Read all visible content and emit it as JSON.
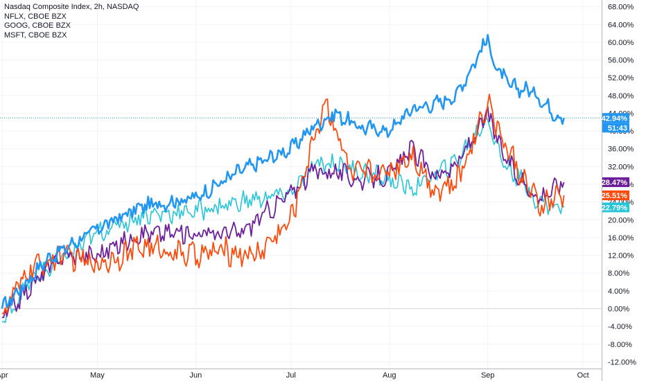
{
  "legend": {
    "main": "Nasdaq Composite Index, 2h, NASDAQ",
    "items": [
      "NFLX, CBOE BZX",
      "GOOG, CBOE BZX",
      "MSFT, CBOE BZX"
    ]
  },
  "chart_data": {
    "type": "line",
    "y_unit": "%",
    "ylim": [
      -12,
      68
    ],
    "y_ticks": [
      "68.00%",
      "64.00%",
      "60.00%",
      "56.00%",
      "52.00%",
      "48.00%",
      "44.00%",
      "40.00%",
      "36.00%",
      "32.00%",
      "28.00%",
      "24.00%",
      "20.00%",
      "16.00%",
      "12.00%",
      "8.00%",
      "4.00%",
      "0.00%",
      "-4.00%",
      "-8.00%",
      "-12.00%"
    ],
    "x_ticks": [
      "Apr",
      "May",
      "Jun",
      "Jul",
      "Aug",
      "Sep",
      "Oct"
    ],
    "grid": true,
    "legend_position": "top-left",
    "series": [
      {
        "name": "Nasdaq Composite Index",
        "color": "#2196f3",
        "x": [
          "Apr 1",
          "Apr 15",
          "May 1",
          "May 15",
          "Jun 1",
          "Jun 15",
          "Jul 1",
          "Jul 8",
          "Jul 15",
          "Jul 22",
          "Aug 1",
          "Aug 8",
          "Aug 15",
          "Aug 22",
          "Sep 1",
          "Sep 3",
          "Sep 8",
          "Sep 15",
          "Sep 22",
          "Sep 25"
        ],
        "values": [
          0,
          11,
          18,
          23,
          25,
          31,
          36,
          41,
          44,
          41,
          40,
          45,
          46,
          48,
          61,
          55,
          50,
          49,
          44,
          42.94
        ],
        "last_value_label": "42.94%",
        "countdown_label": "51:43"
      },
      {
        "name": "NFLX",
        "color": "#ff4a0b",
        "x": [
          "Apr 1",
          "Apr 10",
          "Apr 20",
          "May 1",
          "May 15",
          "Jun 1",
          "Jun 10",
          "Jun 20",
          "Jul 1",
          "Jul 8",
          "Jul 12",
          "Jul 20",
          "Aug 1",
          "Aug 8",
          "Aug 15",
          "Aug 22",
          "Sep 1",
          "Sep 5",
          "Sep 10",
          "Sep 17",
          "Sep 25"
        ],
        "values": [
          -1,
          9,
          12,
          10,
          14,
          12,
          13,
          12,
          20,
          38,
          47,
          30,
          31,
          35,
          27,
          28,
          47,
          39,
          32,
          23,
          25.51
        ],
        "last_value_label": "25.51%"
      },
      {
        "name": "GOOG",
        "color": "#6d1e9c",
        "x": [
          "Apr 1",
          "Apr 10",
          "Apr 20",
          "May 1",
          "May 15",
          "Jun 1",
          "Jun 15",
          "Jul 1",
          "Jul 8",
          "Jul 15",
          "Jul 22",
          "Aug 1",
          "Aug 8",
          "Aug 15",
          "Aug 22",
          "Sep 1",
          "Sep 5",
          "Sep 10",
          "Sep 17",
          "Sep 25"
        ],
        "values": [
          -2,
          5,
          12,
          12,
          17,
          17,
          17,
          26,
          31,
          31,
          29,
          30,
          36,
          30,
          32,
          44,
          36,
          30,
          25,
          28.47
        ],
        "last_value_label": "28.47%"
      },
      {
        "name": "MSFT",
        "color": "#26c6da",
        "x": [
          "Apr 1",
          "Apr 10",
          "Apr 20",
          "May 1",
          "May 15",
          "Jun 1",
          "Jun 15",
          "Jul 1",
          "Jul 8",
          "Jul 15",
          "Jul 22",
          "Aug 1",
          "Aug 8",
          "Aug 15",
          "Aug 22",
          "Sep 1",
          "Sep 5",
          "Sep 10",
          "Sep 17",
          "Sep 25"
        ],
        "values": [
          -3,
          6,
          11,
          17,
          21,
          22,
          24,
          26,
          32,
          33,
          31,
          29,
          27,
          30,
          33,
          43,
          34,
          30,
          24,
          22.79
        ],
        "last_value_label": "22.79%"
      }
    ]
  }
}
